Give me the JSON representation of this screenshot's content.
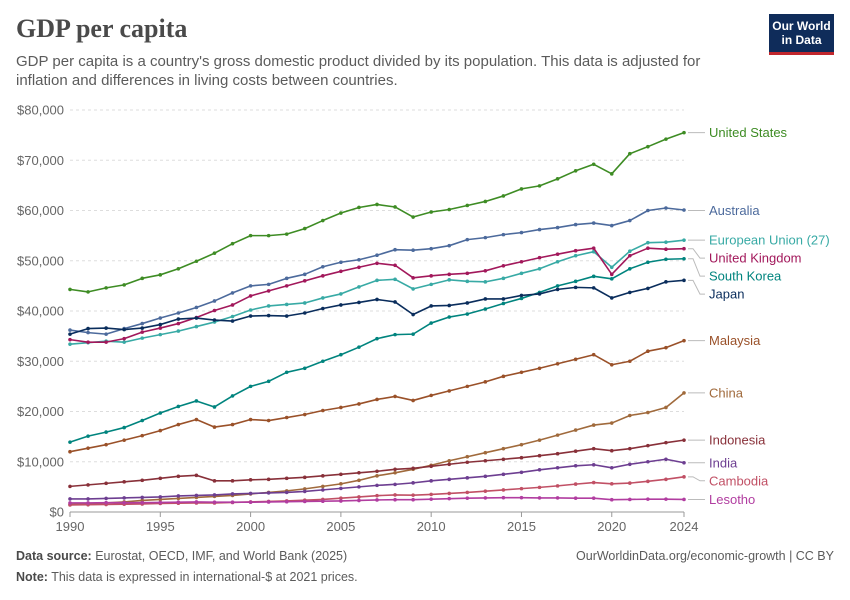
{
  "header": {
    "title": "GDP per capita",
    "subtitle": "GDP per capita is a country's gross domestic product divided by its population. This data is adjusted for inflation and differences in living costs between countries.",
    "logo_line1": "Our World",
    "logo_line2": "in Data"
  },
  "footer": {
    "source_label": "Data source:",
    "source_text": "Eurostat, OECD, IMF, and World Bank (2025)",
    "note_label": "Note:",
    "note_text": "This data is expressed in international-$ at 2021 prices.",
    "link": "OurWorldinData.org/economic-growth | CC BY"
  },
  "chart_data": {
    "type": "line",
    "title": "GDP per capita",
    "xlabel": "",
    "ylabel": "",
    "xlim": [
      1990,
      2024
    ],
    "ylim": [
      0,
      80000
    ],
    "x_ticks": [
      1990,
      1995,
      2000,
      2005,
      2010,
      2015,
      2020,
      2024
    ],
    "y_ticks": [
      0,
      10000,
      20000,
      30000,
      40000,
      50000,
      60000,
      70000,
      80000
    ],
    "y_tick_labels": [
      "$0",
      "$10,000",
      "$20,000",
      "$30,000",
      "$40,000",
      "$50,000",
      "$60,000",
      "$70,000",
      "$80,000"
    ],
    "grid": true,
    "x": [
      1990,
      1991,
      1992,
      1993,
      1994,
      1995,
      1996,
      1997,
      1998,
      1999,
      2000,
      2001,
      2002,
      2003,
      2004,
      2005,
      2006,
      2007,
      2008,
      2009,
      2010,
      2011,
      2012,
      2013,
      2014,
      2015,
      2016,
      2017,
      2018,
      2019,
      2020,
      2021,
      2022,
      2023,
      2024
    ],
    "series": [
      {
        "name": "United States",
        "color": "#3e8c24",
        "label_value": 75500,
        "values": [
          44300,
          43800,
          44600,
          45200,
          46500,
          47200,
          48400,
          49900,
          51500,
          53400,
          55000,
          55000,
          55300,
          56400,
          58000,
          59500,
          60600,
          61200,
          60700,
          58700,
          59700,
          60200,
          61000,
          61800,
          62900,
          64300,
          64900,
          66300,
          67900,
          69200,
          67300,
          71300,
          72700,
          74200,
          75500
        ]
      },
      {
        "name": "Australia",
        "color": "#4c6a9c",
        "label_value": 60000,
        "values": [
          36200,
          35700,
          35400,
          36500,
          37500,
          38600,
          39600,
          40700,
          42000,
          43600,
          45000,
          45300,
          46500,
          47300,
          48800,
          49700,
          50200,
          51100,
          52200,
          52100,
          52400,
          53000,
          54200,
          54600,
          55200,
          55600,
          56200,
          56600,
          57200,
          57500,
          57000,
          58000,
          60000,
          60500,
          60100
        ]
      },
      {
        "name": "European Union (27)",
        "color": "#38aaa5",
        "label_value": 54100,
        "values": [
          33400,
          33700,
          34000,
          33800,
          34600,
          35300,
          36000,
          36900,
          37800,
          38900,
          40200,
          41000,
          41300,
          41600,
          42600,
          43400,
          44800,
          46100,
          46300,
          44400,
          45300,
          46200,
          45900,
          45800,
          46500,
          47500,
          48400,
          49800,
          51000,
          51800,
          48700,
          51900,
          53600,
          53700,
          54100
        ]
      },
      {
        "name": "United Kingdom",
        "color": "#a2185b",
        "label_value": 52400,
        "values": [
          34300,
          33800,
          33800,
          34500,
          35800,
          36600,
          37500,
          38700,
          40100,
          41200,
          43000,
          44000,
          45000,
          46000,
          47000,
          47900,
          48700,
          49500,
          49100,
          46600,
          47000,
          47300,
          47500,
          48000,
          49000,
          49800,
          50600,
          51300,
          52000,
          52500,
          47300,
          51000,
          52500,
          52300,
          52400
        ]
      },
      {
        "name": "South Korea",
        "color": "#00847e",
        "label_value": 50400,
        "values": [
          13900,
          15100,
          15900,
          16800,
          18200,
          19700,
          21000,
          22100,
          20900,
          23100,
          25000,
          26000,
          27800,
          28600,
          30000,
          31300,
          32800,
          34500,
          35300,
          35400,
          37600,
          38800,
          39400,
          40400,
          41500,
          42500,
          43700,
          45000,
          45900,
          46900,
          46400,
          48400,
          49700,
          50300,
          50400
        ]
      },
      {
        "name": "Japan",
        "color": "#0a2d5c",
        "label_value": 46100,
        "values": [
          35400,
          36500,
          36600,
          36300,
          36600,
          37300,
          38400,
          38600,
          38200,
          38000,
          39000,
          39100,
          39000,
          39600,
          40500,
          41200,
          41700,
          42300,
          41800,
          39300,
          41000,
          41100,
          41600,
          42400,
          42400,
          43100,
          43400,
          44300,
          44700,
          44600,
          42600,
          43700,
          44500,
          45800,
          46100
        ]
      },
      {
        "name": "Malaysia",
        "color": "#9a5129",
        "label_value": 34100,
        "values": [
          12000,
          12700,
          13400,
          14300,
          15200,
          16200,
          17400,
          18400,
          16900,
          17400,
          18400,
          18200,
          18800,
          19400,
          20200,
          20800,
          21500,
          22400,
          23000,
          22200,
          23200,
          24100,
          25000,
          25900,
          27000,
          27800,
          28600,
          29500,
          30400,
          31300,
          29300,
          30000,
          32000,
          32700,
          34100
        ]
      },
      {
        "name": "China",
        "color": "#a06a3c",
        "label_value": 23700,
        "values": [
          1500,
          1600,
          1800,
          2000,
          2300,
          2500,
          2700,
          2900,
          3100,
          3300,
          3600,
          3900,
          4200,
          4600,
          5100,
          5600,
          6300,
          7200,
          7800,
          8500,
          9300,
          10200,
          11000,
          11800,
          12600,
          13400,
          14300,
          15300,
          16300,
          17300,
          17700,
          19200,
          19800,
          20800,
          23700
        ]
      },
      {
        "name": "Indonesia",
        "color": "#883039",
        "label_value": 14300,
        "values": [
          5100,
          5400,
          5700,
          6000,
          6300,
          6700,
          7100,
          7300,
          6200,
          6200,
          6400,
          6500,
          6700,
          6900,
          7200,
          7500,
          7800,
          8100,
          8500,
          8700,
          9100,
          9500,
          9900,
          10200,
          10500,
          10800,
          11200,
          11600,
          12100,
          12600,
          12200,
          12600,
          13200,
          13800,
          14300
        ]
      },
      {
        "name": "India",
        "color": "#6d3e91",
        "label_value": 9800,
        "values": [
          2600,
          2600,
          2700,
          2800,
          2900,
          3000,
          3200,
          3300,
          3400,
          3600,
          3700,
          3800,
          3900,
          4100,
          4400,
          4700,
          5000,
          5300,
          5500,
          5800,
          6200,
          6500,
          6800,
          7100,
          7500,
          7900,
          8400,
          8800,
          9200,
          9400,
          8800,
          9500,
          10000,
          10500,
          9800
        ]
      },
      {
        "name": "Cambodia",
        "color": "#c15065",
        "label_value": 7000,
        "values": [
          1400,
          1450,
          1500,
          1550,
          1600,
          1700,
          1750,
          1800,
          1800,
          1900,
          2000,
          2100,
          2200,
          2350,
          2500,
          2750,
          3000,
          3250,
          3400,
          3350,
          3500,
          3700,
          3900,
          4150,
          4400,
          4650,
          4900,
          5200,
          5550,
          5850,
          5600,
          5750,
          6100,
          6500,
          7000
        ]
      },
      {
        "name": "Lesotho",
        "color": "#b13da0",
        "label_value": 2500,
        "values": [
          1800,
          1800,
          1850,
          1850,
          1850,
          1900,
          1950,
          2000,
          1950,
          1950,
          1950,
          2000,
          2050,
          2100,
          2150,
          2200,
          2300,
          2400,
          2450,
          2450,
          2550,
          2650,
          2750,
          2800,
          2850,
          2850,
          2800,
          2800,
          2750,
          2750,
          2450,
          2500,
          2550,
          2550,
          2500
        ]
      }
    ]
  }
}
